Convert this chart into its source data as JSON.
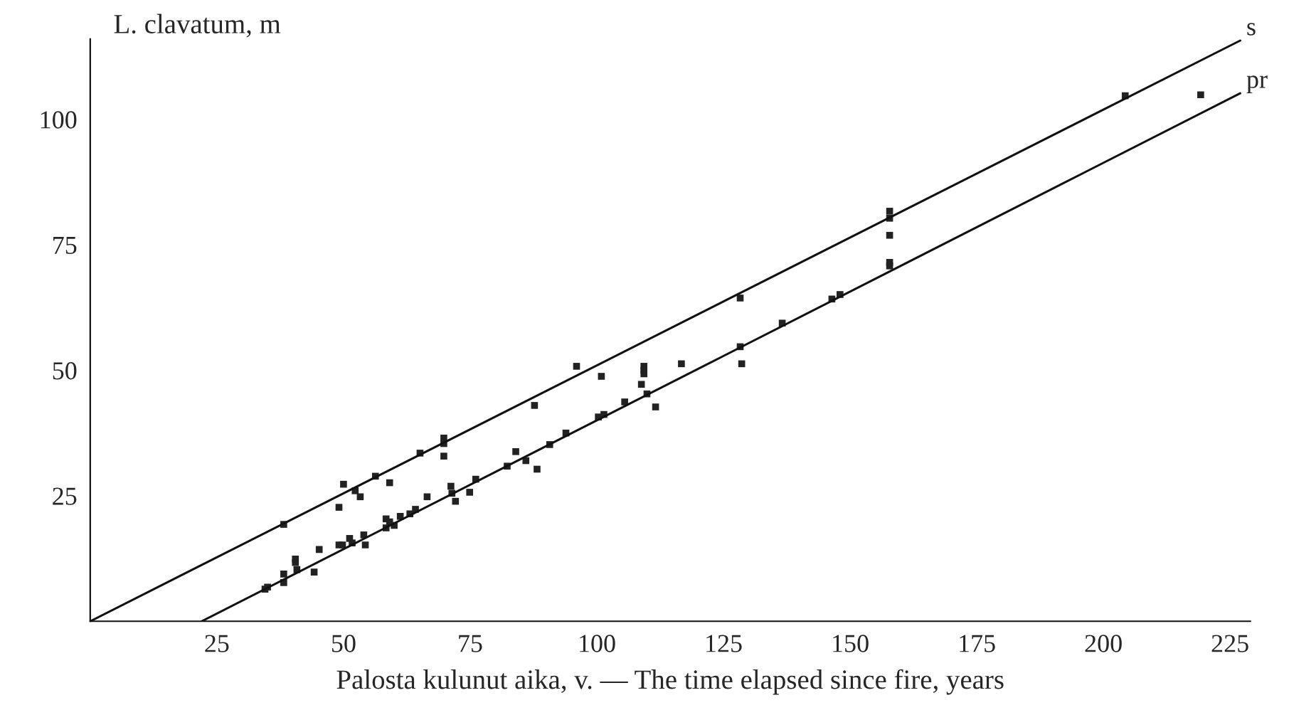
{
  "chart_data": {
    "type": "scatter",
    "xlabel": "Palosta kulunut aika, v. — The time elapsed since fire, years",
    "ylabel": "L. clavatum, m",
    "xlim": [
      0,
      229
    ],
    "ylim": [
      0,
      116
    ],
    "xticks": [
      25,
      50,
      75,
      100,
      125,
      150,
      175,
      200,
      225
    ],
    "yticks": [
      25,
      50,
      75,
      100
    ],
    "grid": false,
    "legend": false,
    "series": [
      {
        "type": "line",
        "name": "s",
        "color": "#111111",
        "x": [
          0,
          227
        ],
        "values": [
          0,
          115.7
        ]
      },
      {
        "type": "line",
        "name": "pr",
        "color": "#111111",
        "x": [
          22,
          227
        ],
        "values": [
          0,
          105.2
        ]
      },
      {
        "marker": "square",
        "color": "#222222",
        "x": [
          38.2,
          50.0,
          49.1,
          52.3,
          53.3,
          56.3,
          59.1,
          65.1,
          69.8,
          69.8,
          69.8,
          87.7,
          96.0,
          100.9,
          34.5,
          35.0,
          38.2,
          38.2,
          40.5,
          40.5,
          40.8,
          44.2,
          45.2,
          49.1,
          49.8,
          51.2,
          51.7,
          54.0,
          54.3,
          58.4,
          58.4,
          59.1,
          60.0,
          61.2,
          63.1,
          64.2,
          66.5,
          71.2,
          71.4,
          72.1,
          74.9,
          76.1,
          82.3,
          84.0,
          86.0,
          88.2,
          90.7,
          93.9,
          100.3,
          101.4,
          105.5,
          108.8,
          109.3,
          109.3,
          109.3,
          109.9,
          111.6,
          116.7,
          128.3,
          128.6,
          128.3,
          136.6,
          146.4,
          148.0,
          157.8,
          157.8,
          157.8,
          157.8,
          157.8,
          204.3,
          219.2
        ],
        "values": [
          19.3,
          27.3,
          22.7,
          26.0,
          24.8,
          28.9,
          27.6,
          33.5,
          36.5,
          35.4,
          32.9,
          43.0,
          50.8,
          48.8,
          6.4,
          6.8,
          9.4,
          7.7,
          12.4,
          11.7,
          10.3,
          9.8,
          14.3,
          15.2,
          15.2,
          16.5,
          15.6,
          17.2,
          15.2,
          20.4,
          18.6,
          19.8,
          19.1,
          20.9,
          21.4,
          22.3,
          24.8,
          26.9,
          25.5,
          23.9,
          25.7,
          28.3,
          30.9,
          33.8,
          32.0,
          30.3,
          35.2,
          37.5,
          40.7,
          41.2,
          43.7,
          47.2,
          50.8,
          50.0,
          49.3,
          45.3,
          42.7,
          51.3,
          54.7,
          51.3,
          64.4,
          59.4,
          64.2,
          65.1,
          81.7,
          80.3,
          76.9,
          71.5,
          70.8,
          104.7,
          104.9
        ]
      }
    ]
  }
}
